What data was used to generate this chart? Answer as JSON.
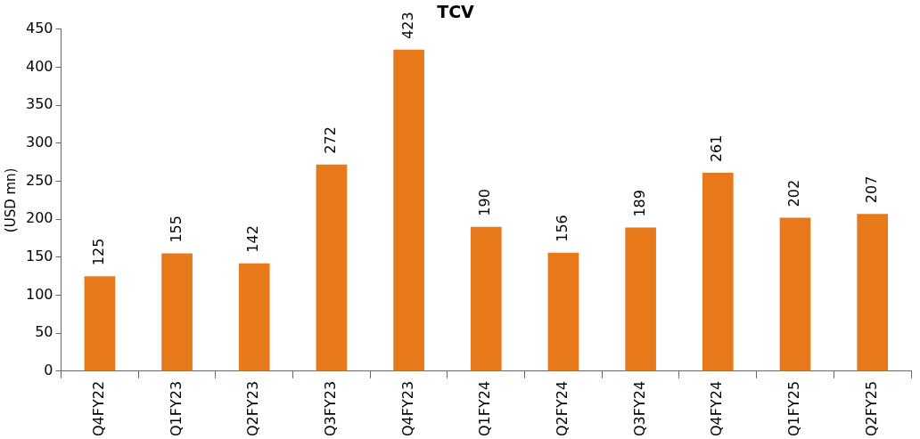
{
  "chart_data": {
    "type": "bar",
    "title": "TCV",
    "ylabel": "(USD mn)",
    "categories": [
      "Q4FY22",
      "Q1FY23",
      "Q2FY23",
      "Q3FY23",
      "Q4FY23",
      "Q1FY24",
      "Q2FY24",
      "Q3FY24",
      "Q4FY24",
      "Q1FY25",
      "Q2FY25"
    ],
    "values": [
      125,
      155,
      142,
      272,
      423,
      190,
      156,
      189,
      261,
      202,
      207
    ],
    "color": "#e8791b",
    "ylim": [
      0,
      450
    ],
    "yticks": [
      0,
      50,
      100,
      150,
      200,
      250,
      300,
      350,
      400,
      450
    ],
    "grid": false,
    "data_labels": true
  }
}
